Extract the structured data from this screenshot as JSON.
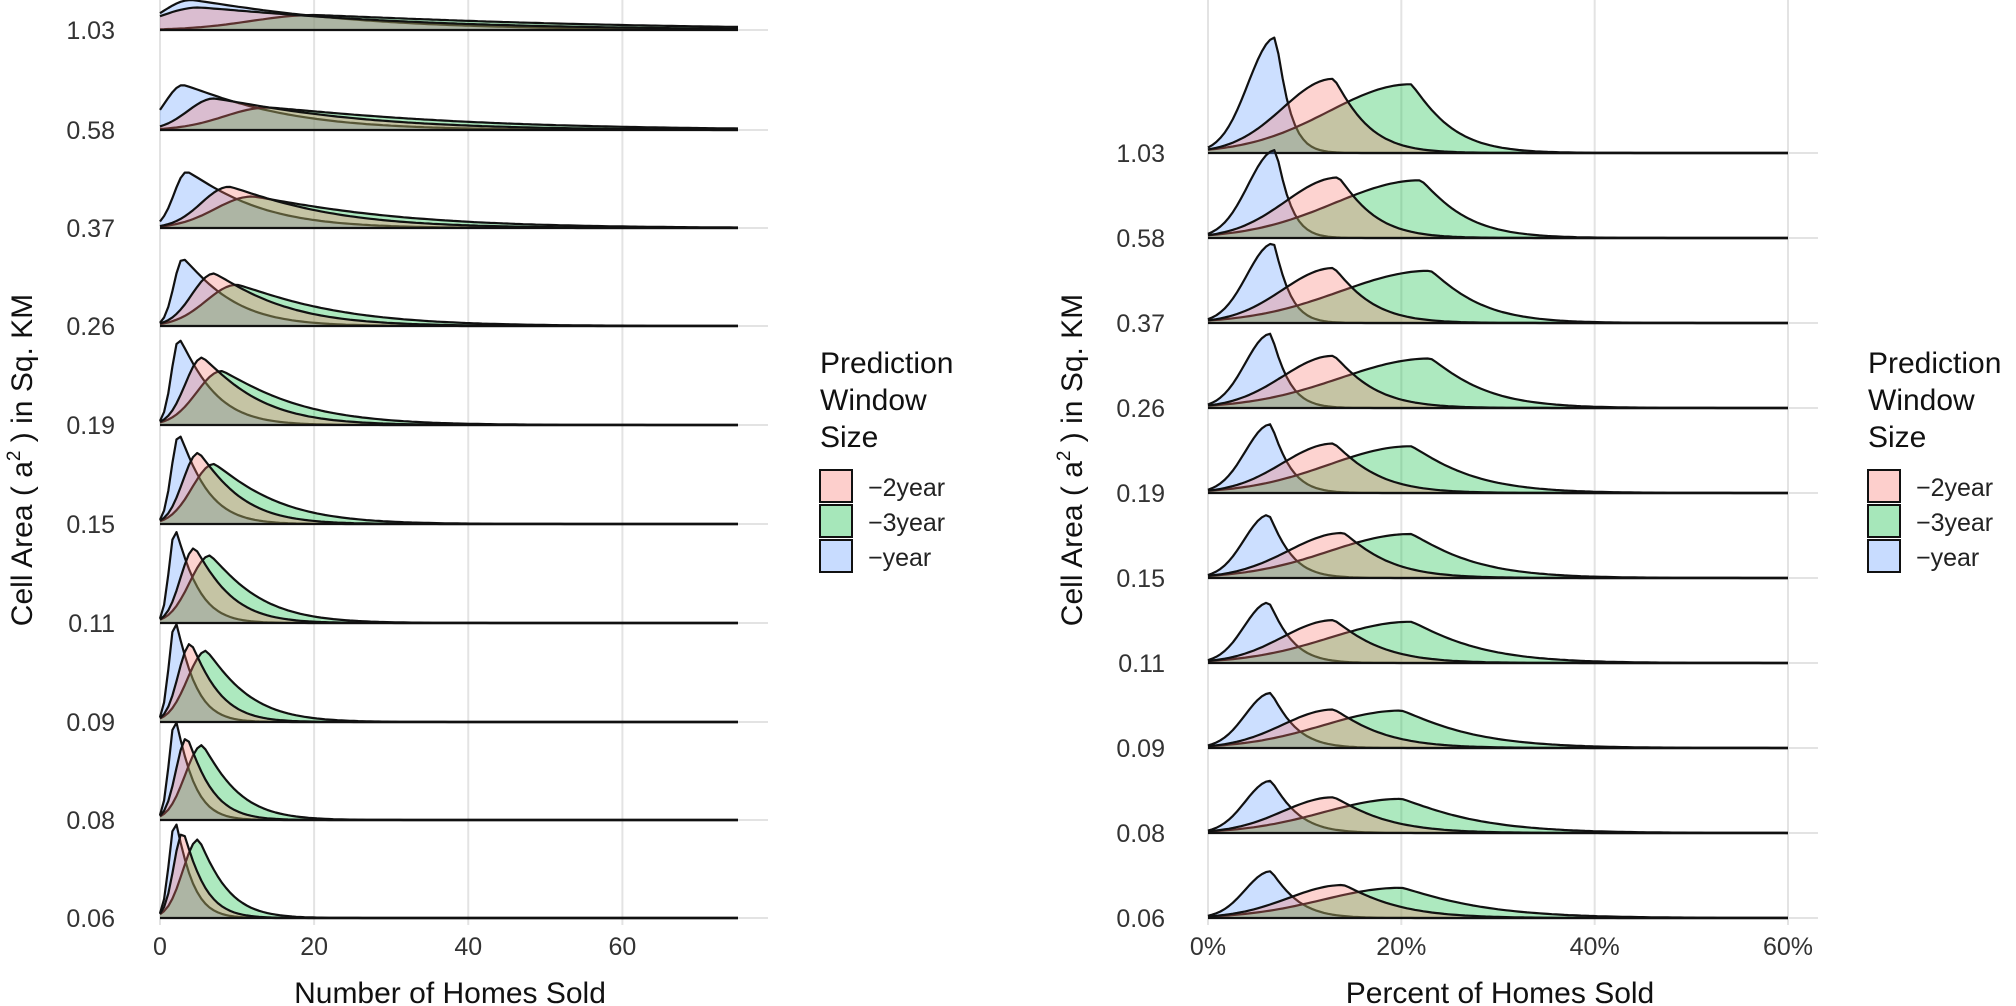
{
  "colors": {
    "-2year": "#F8766D",
    "-3year": "#00BA38",
    "-year": "#619CFF",
    "grid": "#e3e3e3",
    "outline": "#111111"
  },
  "legend": {
    "title_lines": [
      "Prediction",
      "Window",
      "Size"
    ],
    "items": [
      {
        "label": "−2year",
        "key": "-2year"
      },
      {
        "label": "−3year",
        "key": "-3year"
      },
      {
        "label": "−year",
        "key": "-year"
      }
    ]
  },
  "chart_data": [
    {
      "type": "ridgeline-density",
      "xlabel": "Number of Homes Sold",
      "ylabel": "Cell Area ( a² ) in Sq. KM",
      "ylabel_parts": {
        "before": "Cell Area ( a",
        "sup": "2",
        "after": " )  in Sq. KM"
      },
      "xlim": [
        0,
        75
      ],
      "x_ticks": [
        0,
        20,
        40,
        60
      ],
      "x_tick_labels": [
        "0",
        "20",
        "40",
        "60"
      ],
      "categories": [
        "0.06",
        "0.08",
        "0.09",
        "0.11",
        "0.15",
        "0.19",
        "0.26",
        "0.37",
        "0.58",
        "1.03"
      ],
      "series_order": [
        "-year",
        "-3year",
        "-2year"
      ],
      "series": [
        {
          "key": "-year",
          "mode": [
            2,
            2,
            2,
            2,
            2.5,
            2.5,
            3,
            3.5,
            3,
            4
          ],
          "height": [
            1.3,
            1.35,
            1.35,
            1.25,
            1.2,
            1.15,
            0.9,
            0.75,
            0.6,
            0.4
          ],
          "spread": [
            2.4,
            2.6,
            2.8,
            3.2,
            4,
            5,
            7,
            10,
            14,
            22
          ]
        },
        {
          "key": "-3year",
          "mode": [
            5,
            5.5,
            6,
            6.5,
            7,
            8,
            10,
            12,
            14,
            20
          ],
          "height": [
            1.05,
            1.0,
            0.95,
            0.9,
            0.8,
            0.72,
            0.55,
            0.42,
            0.3,
            0.2
          ],
          "spread": [
            4,
            5,
            6,
            7,
            9,
            11,
            14,
            20,
            28,
            40
          ]
        },
        {
          "key": "-2year",
          "mode": [
            3,
            3.5,
            4,
            4.5,
            5,
            5.5,
            7,
            9,
            7,
            5
          ],
          "height": [
            1.15,
            1.1,
            1.05,
            1.0,
            0.95,
            0.9,
            0.7,
            0.55,
            0.42,
            0.3
          ],
          "spread": [
            3,
            3.5,
            4,
            5,
            6,
            8,
            10,
            14,
            20,
            30
          ]
        }
      ]
    },
    {
      "type": "ridgeline-density",
      "xlabel": "Percent of Homes Sold",
      "ylabel": "Cell Area ( a² ) in Sq. KM",
      "ylabel_parts": {
        "before": "Cell Area ( a",
        "sup": "2",
        "after": " )  in Sq. KM"
      },
      "xlim": [
        0,
        0.6
      ],
      "x_ticks": [
        0,
        0.2,
        0.4,
        0.6
      ],
      "x_tick_labels": [
        "0%",
        "20%",
        "40%",
        "60%"
      ],
      "categories": [
        "0.06",
        "0.08",
        "0.09",
        "0.11",
        "0.15",
        "0.19",
        "0.26",
        "0.37",
        "0.58",
        "1.03"
      ],
      "series_order": [
        "-year",
        "-3year",
        "-2year"
      ],
      "series": [
        {
          "key": "-year",
          "mode": [
            0.065,
            0.065,
            0.065,
            0.063,
            0.063,
            0.065,
            0.065,
            0.068,
            0.07,
            0.07
          ],
          "height": [
            0.85,
            0.95,
            1.0,
            1.1,
            1.15,
            1.25,
            1.35,
            1.45,
            1.6,
            2.1
          ],
          "spread": [
            0.03,
            0.03,
            0.028,
            0.026,
            0.025,
            0.022,
            0.02,
            0.018,
            0.017,
            0.016
          ]
        },
        {
          "key": "-3year",
          "mode": [
            0.2,
            0.2,
            0.2,
            0.21,
            0.21,
            0.21,
            0.23,
            0.23,
            0.22,
            0.21
          ],
          "height": [
            0.55,
            0.62,
            0.68,
            0.75,
            0.8,
            0.85,
            0.9,
            0.95,
            1.05,
            1.25
          ],
          "spread": [
            0.09,
            0.085,
            0.08,
            0.075,
            0.07,
            0.068,
            0.06,
            0.055,
            0.05,
            0.045
          ]
        },
        {
          "key": "-2year",
          "mode": [
            0.14,
            0.13,
            0.13,
            0.13,
            0.14,
            0.13,
            0.13,
            0.13,
            0.135,
            0.13
          ],
          "height": [
            0.6,
            0.65,
            0.7,
            0.78,
            0.82,
            0.9,
            0.95,
            1.0,
            1.1,
            1.35
          ],
          "spread": [
            0.06,
            0.058,
            0.055,
            0.052,
            0.05,
            0.048,
            0.045,
            0.042,
            0.04,
            0.038
          ]
        }
      ]
    }
  ]
}
